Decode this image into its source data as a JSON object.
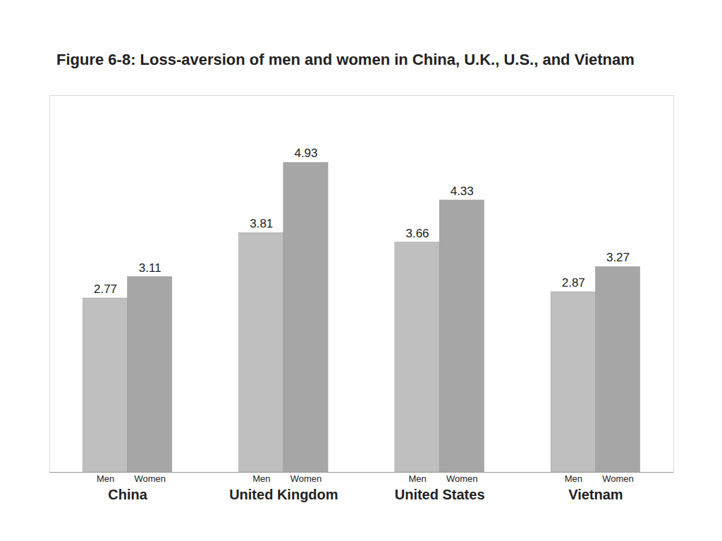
{
  "chart_data": {
    "type": "bar",
    "title": "Figure 6-8: Loss-aversion of men and women in China, U.K., U.S., and Vietnam",
    "categories": [
      "China",
      "United Kingdom",
      "United States",
      "Vietnam"
    ],
    "series": [
      {
        "name": "Men",
        "color": "#bfbfbf",
        "values": [
          2.77,
          3.81,
          3.66,
          2.87
        ]
      },
      {
        "name": "Women",
        "color": "#a6a6a6",
        "values": [
          3.11,
          4.93,
          4.33,
          3.27
        ]
      }
    ],
    "ylim": [
      0,
      6
    ],
    "data_labels": true,
    "tick_labels": "x",
    "grid": false
  }
}
